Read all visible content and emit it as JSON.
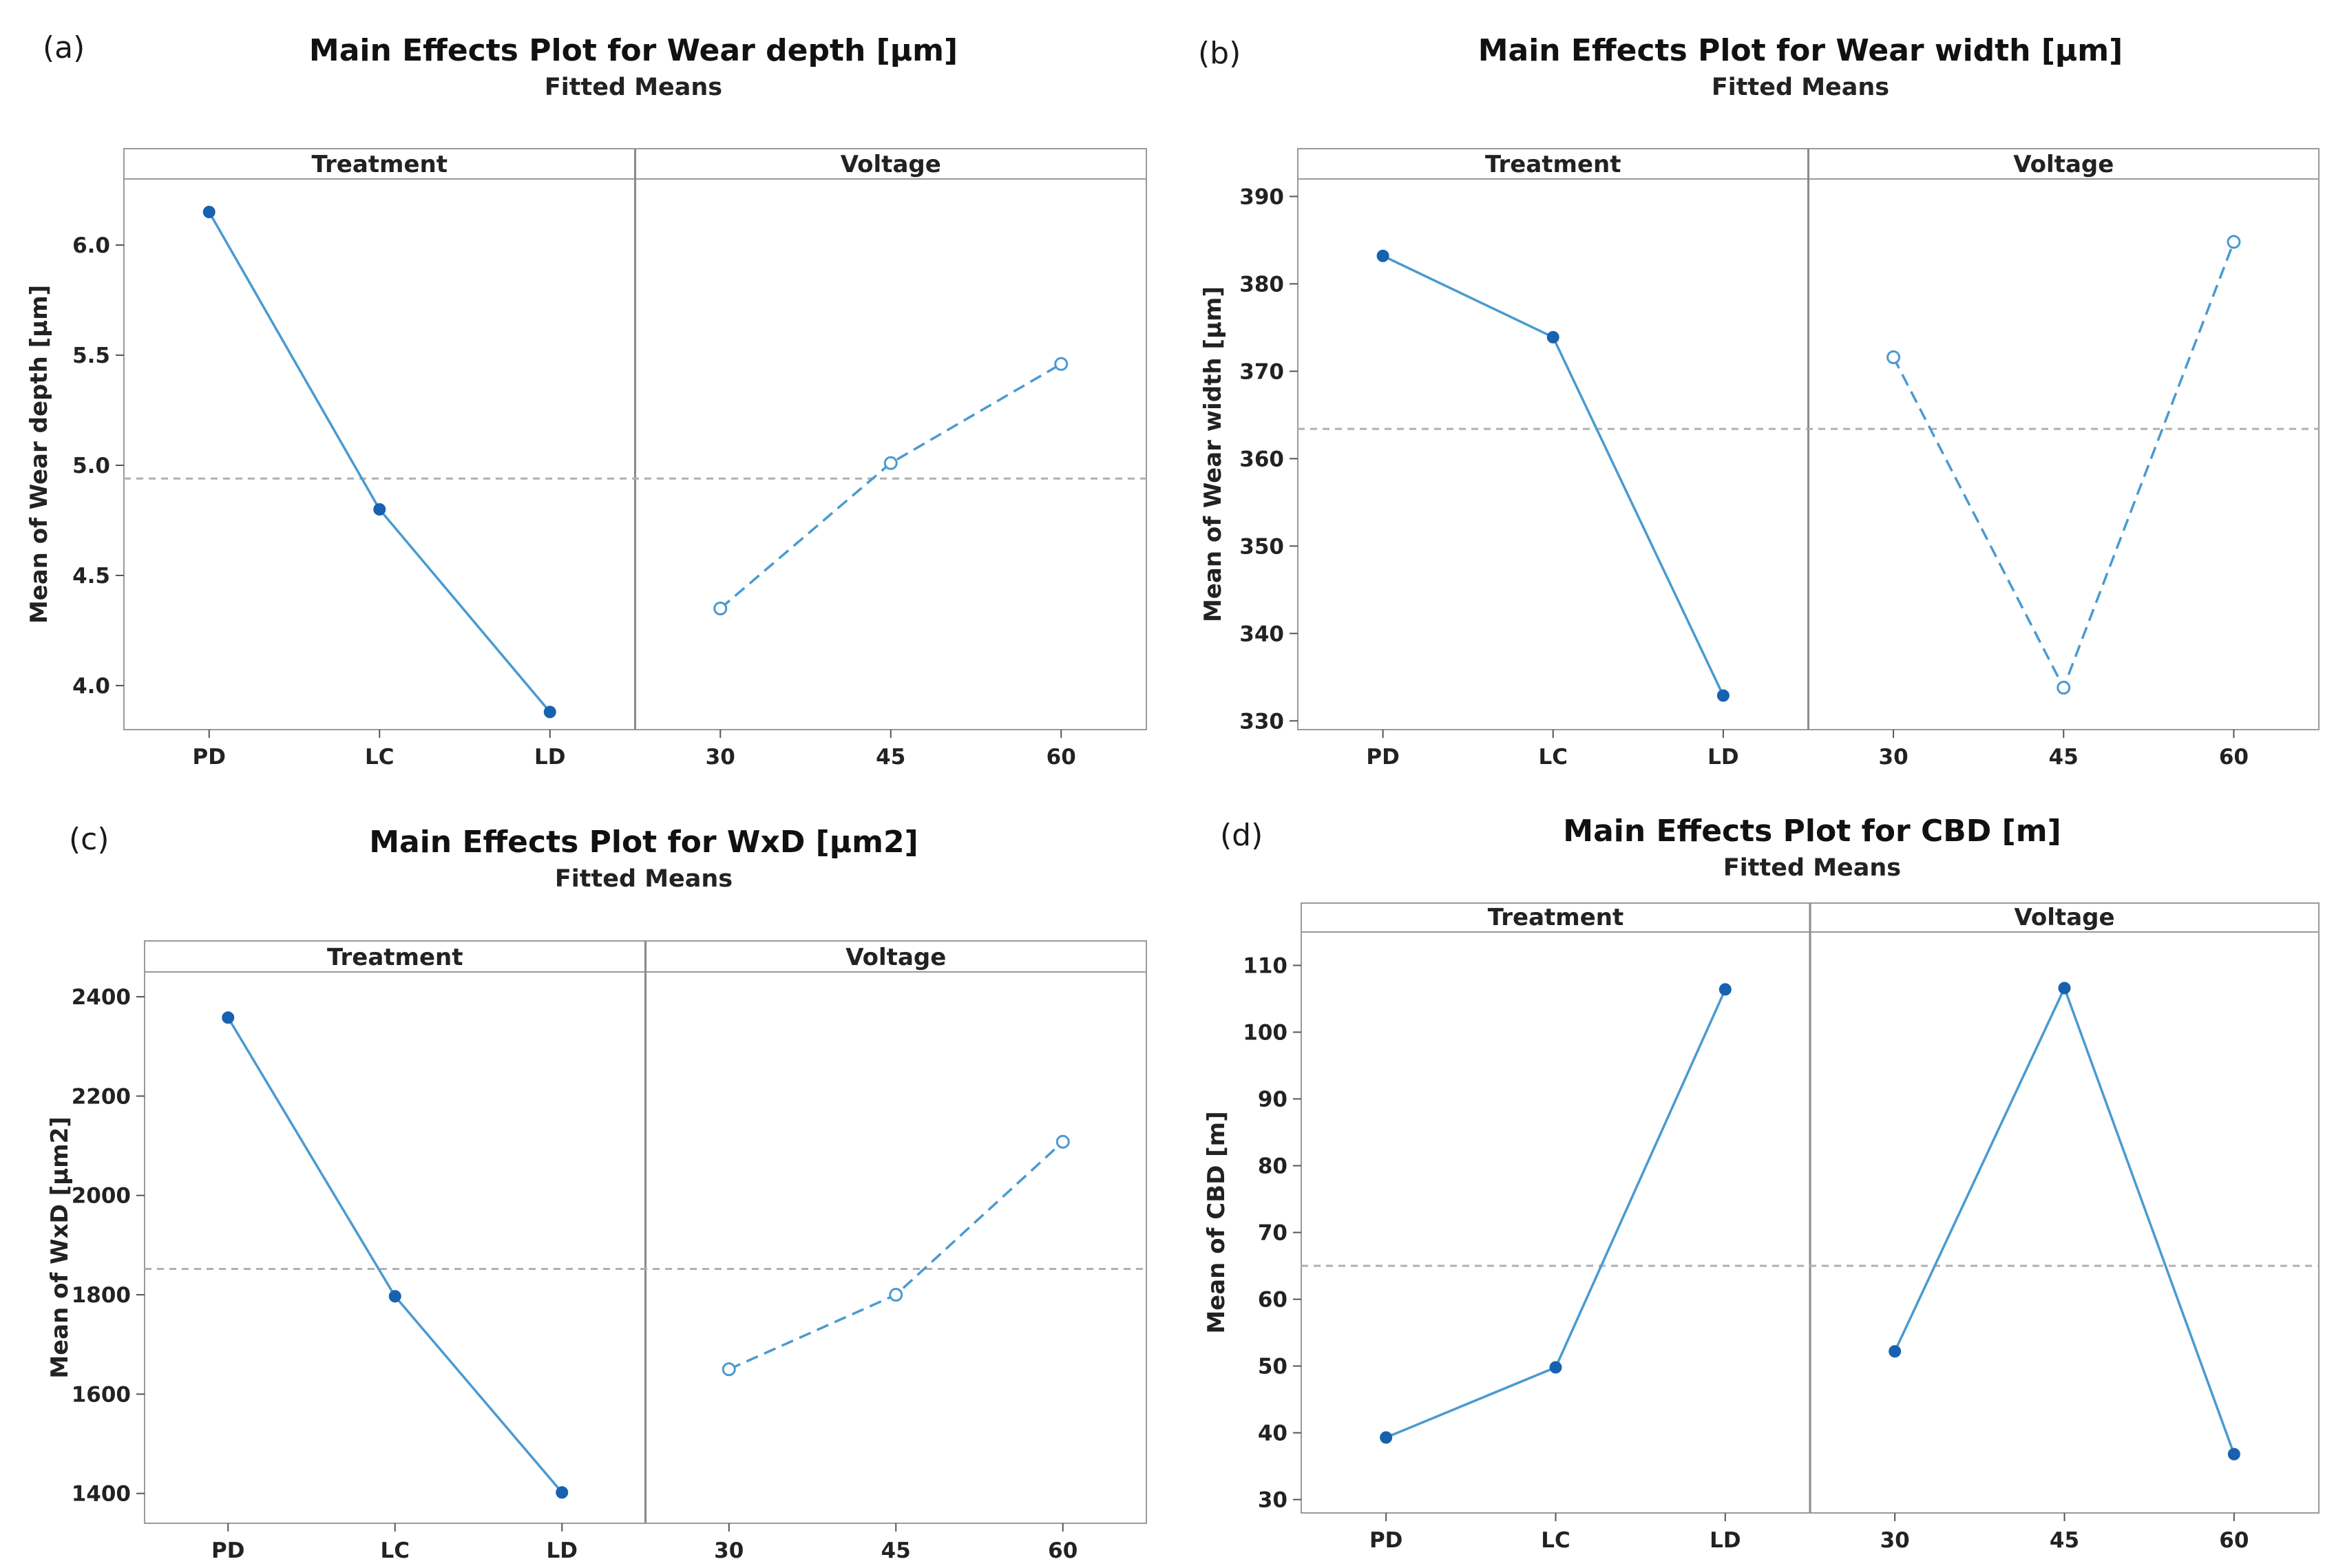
{
  "chart_data": [
    {
      "type": "line",
      "panel_letter": "(a)",
      "title": "Main Effects Plot for Wear depth [µm]",
      "subtitle": "Fitted Means",
      "ylabel": "Mean of Wear depth [µm]",
      "yticks": [
        4.0,
        4.5,
        5.0,
        5.5,
        6.0
      ],
      "ytick_labels": [
        "4.0",
        "4.5",
        "5.0",
        "5.5",
        "6.0"
      ],
      "ylim": [
        3.8,
        6.3
      ],
      "mean_line": 4.94,
      "facets": [
        {
          "label": "Treatment",
          "categories": [
            "PD",
            "LC",
            "LD"
          ],
          "values": [
            6.15,
            4.8,
            3.88
          ],
          "style": "solid"
        },
        {
          "label": "Voltage",
          "categories": [
            "30",
            "45",
            "60"
          ],
          "values": [
            4.35,
            5.01,
            5.46
          ],
          "style": "dashed"
        }
      ]
    },
    {
      "type": "line",
      "panel_letter": "(b)",
      "title": "Main Effects Plot for Wear width [µm]",
      "subtitle": "Fitted Means",
      "ylabel": "Mean of Wear width [µm]",
      "yticks": [
        330,
        340,
        350,
        360,
        370,
        380,
        390
      ],
      "ytick_labels": [
        "330",
        "340",
        "350",
        "360",
        "370",
        "380",
        "390"
      ],
      "ylim": [
        329,
        392
      ],
      "mean_line": 363.4,
      "facets": [
        {
          "label": "Treatment",
          "categories": [
            "PD",
            "LC",
            "LD"
          ],
          "values": [
            383.2,
            373.9,
            332.9
          ],
          "style": "solid"
        },
        {
          "label": "Voltage",
          "categories": [
            "30",
            "45",
            "60"
          ],
          "values": [
            371.6,
            333.8,
            384.8
          ],
          "style": "dashed"
        }
      ]
    },
    {
      "type": "line",
      "panel_letter": "(c)",
      "title": "Main Effects Plot for WxD  [µm2]",
      "subtitle": "Fitted Means",
      "ylabel": "Mean of WxD  [µm2]",
      "yticks": [
        1400,
        1600,
        1800,
        2000,
        2200,
        2400
      ],
      "ytick_labels": [
        "1400",
        "1600",
        "1800",
        "2000",
        "2200",
        "2400"
      ],
      "ylim": [
        1340,
        2450
      ],
      "mean_line": 1852,
      "facets": [
        {
          "label": "Treatment",
          "categories": [
            "PD",
            "LC",
            "LD"
          ],
          "values": [
            2358,
            1797,
            1402
          ],
          "style": "solid"
        },
        {
          "label": "Voltage",
          "categories": [
            "30",
            "45",
            "60"
          ],
          "values": [
            1650,
            1800,
            2108
          ],
          "style": "dashed"
        }
      ]
    },
    {
      "type": "line",
      "panel_letter": "(d)",
      "title": "Main Effects Plot for CBD [m]",
      "subtitle": "Fitted Means",
      "ylabel": "Mean of CBD [m]",
      "yticks": [
        30,
        40,
        50,
        60,
        70,
        80,
        90,
        100,
        110
      ],
      "ytick_labels": [
        "30",
        "40",
        "50",
        "60",
        "70",
        "80",
        "90",
        "100",
        "110"
      ],
      "ylim": [
        28,
        115
      ],
      "mean_line": 65,
      "facets": [
        {
          "label": "Treatment",
          "categories": [
            "PD",
            "LC",
            "LD"
          ],
          "values": [
            39.3,
            49.8,
            106.4
          ],
          "style": "solid"
        },
        {
          "label": "Voltage",
          "categories": [
            "30",
            "45",
            "60"
          ],
          "values": [
            52.2,
            106.6,
            36.8
          ],
          "style": "solid"
        }
      ]
    }
  ],
  "colors": {
    "line": "#4a9ad0",
    "marker": "#1761b0",
    "reference": "#b0b0b0",
    "frame": "#9a9a9a",
    "divider": "#8a8a8a",
    "tick": "#555555"
  }
}
